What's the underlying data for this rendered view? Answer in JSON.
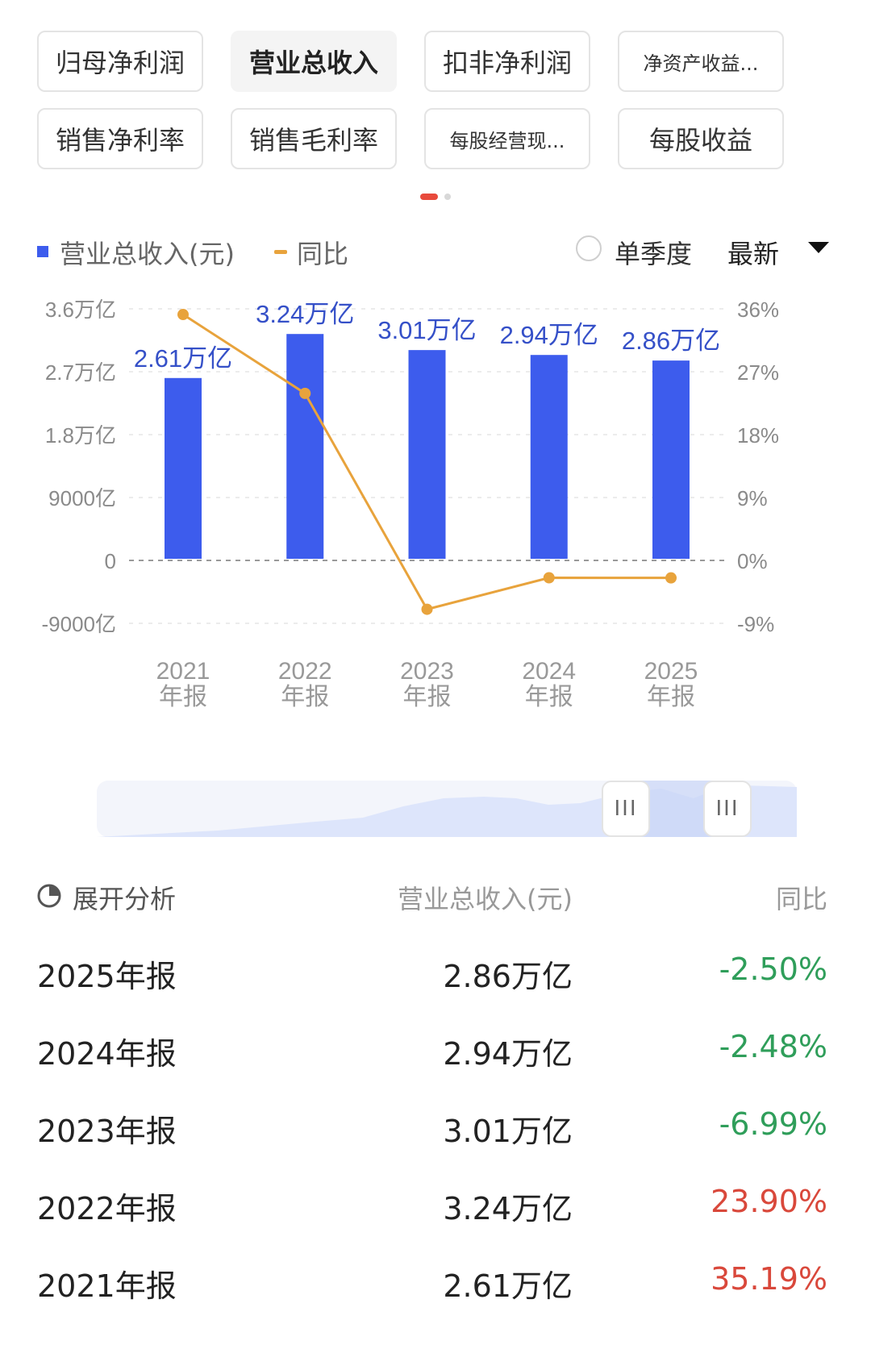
{
  "tabs": [
    {
      "label": "归母净利润",
      "active": false
    },
    {
      "label": "营业总收入",
      "active": true
    },
    {
      "label": "扣非净利润",
      "active": false
    },
    {
      "label": "净资产收益...",
      "active": false
    },
    {
      "label": "销售净利率",
      "active": false
    },
    {
      "label": "销售毛利率",
      "active": false
    },
    {
      "label": "每股经营现...",
      "active": false
    },
    {
      "label": "每股收益",
      "active": false
    }
  ],
  "legend": {
    "revenue": "营业总收入(元)",
    "yoy": "同比",
    "single_quarter": "单季度",
    "period_select": "最新"
  },
  "chart_data": {
    "type": "bar",
    "categories": [
      "2021\n年报",
      "2022\n年报",
      "2023\n年报",
      "2024\n年报",
      "2025\n年报"
    ],
    "series": [
      {
        "name": "营业总收入(元)",
        "type": "bar",
        "unit": "万亿",
        "values": [
          2.61,
          3.24,
          3.01,
          2.94,
          2.86
        ],
        "labels": [
          "2.61万亿",
          "3.24万亿",
          "3.01万亿",
          "2.94万亿",
          "2.86万亿"
        ],
        "color": "#3d5ced"
      },
      {
        "name": "同比",
        "type": "line",
        "unit": "%",
        "values": [
          35.19,
          23.9,
          -6.99,
          -2.48,
          -2.5
        ],
        "color": "#e8a33c"
      }
    ],
    "y_left": {
      "ticks": [
        "3.6万亿",
        "2.7万亿",
        "1.8万亿",
        "9000亿",
        "0",
        "-9000亿"
      ],
      "range_wanyi": [
        -0.9,
        3.6
      ]
    },
    "y_right": {
      "ticks": [
        "36%",
        "27%",
        "18%",
        "9%",
        "0%",
        "-9%"
      ],
      "range_pct": [
        -9,
        36
      ]
    },
    "grid": true
  },
  "slider": {
    "handle_glyph": "III"
  },
  "table": {
    "header": {
      "expand": "展开分析",
      "revenue": "营业总收入(元)",
      "yoy": "同比"
    },
    "rows": [
      {
        "period": "2025年报",
        "revenue": "2.86万亿",
        "yoy": "-2.50%",
        "trend": "down"
      },
      {
        "period": "2024年报",
        "revenue": "2.94万亿",
        "yoy": "-2.48%",
        "trend": "down"
      },
      {
        "period": "2023年报",
        "revenue": "3.01万亿",
        "yoy": "-6.99%",
        "trend": "down"
      },
      {
        "period": "2022年报",
        "revenue": "3.24万亿",
        "yoy": "23.90%",
        "trend": "up"
      },
      {
        "period": "2021年报",
        "revenue": "2.61万亿",
        "yoy": "35.19%",
        "trend": "up"
      }
    ]
  },
  "colors": {
    "bar": "#3d5ced",
    "line": "#e8a33c",
    "negative": "#2f9e5a",
    "positive": "#d9483b",
    "active_dot": "#e84a3c"
  }
}
